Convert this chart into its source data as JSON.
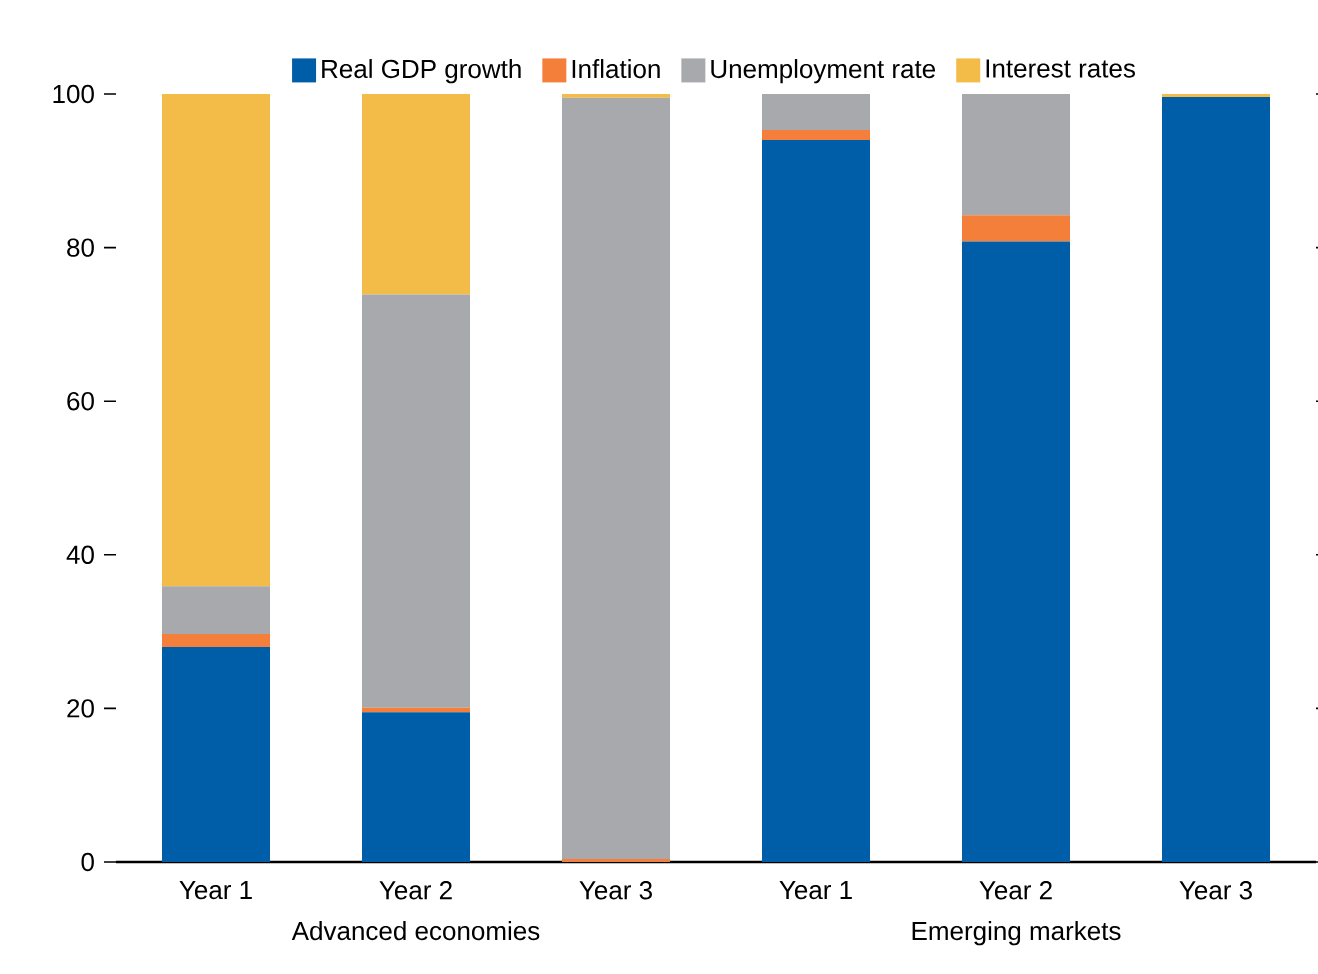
{
  "chart_data": {
    "type": "bar",
    "stacked": true,
    "categories": [
      "Year 1",
      "Year 2",
      "Year 3",
      "Year 1",
      "Year 2",
      "Year 3"
    ],
    "series": [
      {
        "name": "Real GDP growth",
        "color": "#005da8",
        "values": [
          28,
          19.5,
          0,
          94,
          80.8,
          99.6
        ]
      },
      {
        "name": "Inflation",
        "color": "#f47f3a",
        "values": [
          1.7,
          0.6,
          0.4,
          1.3,
          3.4,
          0
        ]
      },
      {
        "name": "Unemployment rate",
        "color": "#a8a9ad",
        "values": [
          6.2,
          53.8,
          99.1,
          4.7,
          15.8,
          0
        ]
      },
      {
        "name": "Interest rates",
        "color": "#f3bb47",
        "values": [
          64.1,
          26.1,
          0.5,
          0,
          0,
          0.4
        ]
      }
    ],
    "ylim": [
      0,
      100
    ],
    "yticks": [
      0,
      20,
      40,
      60,
      80,
      100
    ],
    "grid": false,
    "legend": "top",
    "annotations": [
      "Advanced economies",
      "Emerging markets"
    ]
  }
}
